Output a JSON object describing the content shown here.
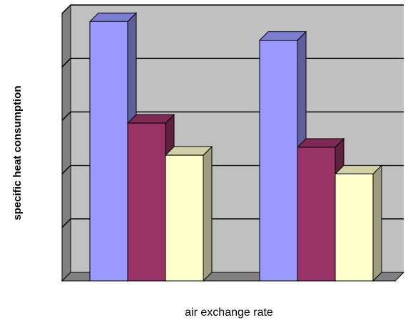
{
  "chart_data": {
    "type": "bar",
    "three_d": true,
    "xlabel": "air exchange rate",
    "ylabel": "specific heat consumption",
    "categories": [
      "",
      ""
    ],
    "ylim": [
      0,
      5
    ],
    "grid": true,
    "legend": "none",
    "tick_labels_shown": false,
    "series": [
      {
        "values": [
          4.85,
          4.5
        ],
        "color": "#9999ff"
      },
      {
        "values": [
          2.95,
          2.5
        ],
        "color": "#993366"
      },
      {
        "values": [
          2.35,
          2.0
        ],
        "color": "#ffffcc"
      }
    ]
  }
}
